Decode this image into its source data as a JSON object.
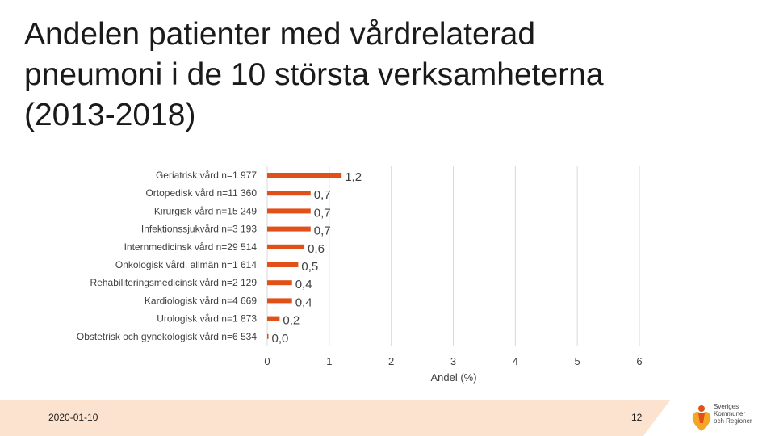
{
  "title_lines": [
    "Andelen patienter med vårdrelaterad",
    "pneumoni i de 10 största verksamheterna",
    "(2013-2018)"
  ],
  "chart_data": {
    "type": "bar",
    "orientation": "horizontal",
    "categories": [
      "Geriatrisk vård n=1 977",
      "Ortopedisk vård n=11 360",
      "Kirurgisk vård n=15 249",
      "Infektionssjukvård n=3 193",
      "Internmedicinsk vård n=29 514",
      "Onkologisk vård, allmän n=1 614",
      "Rehabiliteringsmedicinsk vård n=2 129",
      "Kardiologisk vård n=4 669",
      "Urologisk vård n=1 873",
      "Obstetrisk och gynekologisk vård n=6 534"
    ],
    "values": [
      1.2,
      0.7,
      0.7,
      0.7,
      0.6,
      0.5,
      0.4,
      0.4,
      0.2,
      0.0
    ],
    "value_labels": [
      "1,2",
      "0,7",
      "0,7",
      "0,7",
      "0,6",
      "0,5",
      "0,4",
      "0,4",
      "0,2",
      "0,0"
    ],
    "xlim": [
      0,
      6
    ],
    "xticks": [
      "0",
      "1",
      "2",
      "3",
      "4",
      "5",
      "6"
    ],
    "xlabel": "Andel (%)",
    "ylabel": "",
    "grid": true,
    "bar_color": "#e2501a",
    "grid_color": "#d9d9d9"
  },
  "footer": {
    "date": "2020-01-10",
    "page": "12",
    "band_color": "#fbe3cf"
  },
  "logo": {
    "lines": [
      "Sveriges",
      "Kommuner",
      "och Regioner"
    ],
    "heart_color": "#f5a623",
    "figure_color": "#e2501a"
  }
}
